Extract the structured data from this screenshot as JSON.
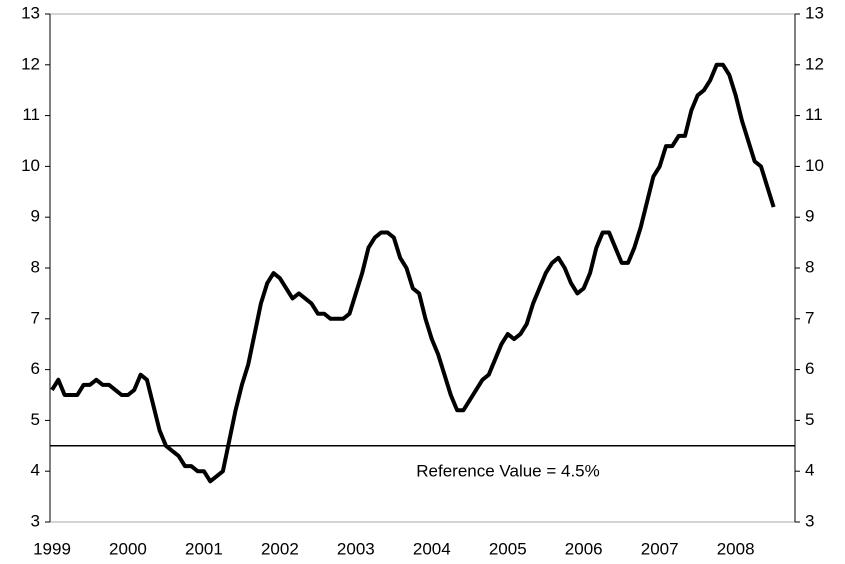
{
  "chart_data": {
    "type": "line",
    "categories": [
      "1999",
      null,
      null,
      null,
      null,
      null,
      null,
      null,
      null,
      null,
      null,
      null,
      "2000",
      null,
      null,
      null,
      null,
      null,
      null,
      null,
      null,
      null,
      null,
      null,
      "2001",
      null,
      null,
      null,
      null,
      null,
      null,
      null,
      null,
      null,
      null,
      null,
      "2002",
      null,
      null,
      null,
      null,
      null,
      null,
      null,
      null,
      null,
      null,
      null,
      "2003",
      null,
      null,
      null,
      null,
      null,
      null,
      null,
      null,
      null,
      null,
      null,
      "2004",
      null,
      null,
      null,
      null,
      null,
      null,
      null,
      null,
      null,
      null,
      null,
      "2005",
      null,
      null,
      null,
      null,
      null,
      null,
      null,
      null,
      null,
      null,
      null,
      "2006",
      null,
      null,
      null,
      null,
      null,
      null,
      null,
      null,
      null,
      null,
      null,
      "2007",
      null,
      null,
      null,
      null,
      null,
      null,
      null,
      null,
      null,
      null,
      null,
      "2008",
      null,
      null,
      null,
      null,
      null,
      null
    ],
    "series": [
      {
        "color": "#000000",
        "values": [
          5.6,
          5.8,
          5.5,
          5.5,
          5.5,
          5.7,
          5.7,
          5.8,
          5.7,
          5.7,
          5.6,
          5.5,
          5.5,
          5.6,
          5.9,
          5.8,
          5.3,
          4.8,
          4.5,
          4.4,
          4.3,
          4.1,
          4.1,
          4.0,
          4.0,
          3.8,
          3.9,
          4.0,
          4.6,
          5.2,
          5.7,
          6.1,
          6.7,
          7.3,
          7.7,
          7.9,
          7.8,
          7.6,
          7.4,
          7.5,
          7.4,
          7.3,
          7.1,
          7.1,
          7.0,
          7.0,
          7.0,
          7.1,
          7.5,
          7.9,
          8.4,
          8.6,
          8.7,
          8.7,
          8.6,
          8.2,
          8.0,
          7.6,
          7.5,
          7.0,
          6.6,
          6.3,
          5.9,
          5.5,
          5.2,
          5.2,
          5.4,
          5.6,
          5.8,
          5.9,
          6.2,
          6.5,
          6.7,
          6.6,
          6.7,
          6.9,
          7.3,
          7.6,
          7.9,
          8.1,
          8.2,
          8.0,
          7.7,
          7.5,
          7.6,
          7.9,
          8.4,
          8.7,
          8.7,
          8.4,
          8.1,
          8.1,
          8.4,
          8.8,
          9.3,
          9.8,
          10.0,
          10.4,
          10.4,
          10.6,
          10.6,
          11.1,
          11.4,
          11.5,
          11.7,
          12.0,
          12.0,
          11.8,
          11.4,
          10.9,
          10.5,
          10.1,
          10.0,
          9.6,
          9.2
        ]
      }
    ],
    "reference_line": {
      "value": 4.5,
      "label": "Reference Value = 4.5%"
    },
    "ylim": [
      3,
      13
    ],
    "yticks": [
      3,
      4,
      5,
      6,
      7,
      8,
      9,
      10,
      11,
      12,
      13
    ],
    "y2lim": [
      3,
      13
    ],
    "y2ticks": [
      3,
      4,
      5,
      6,
      7,
      8,
      9,
      10,
      11,
      12,
      13
    ]
  }
}
